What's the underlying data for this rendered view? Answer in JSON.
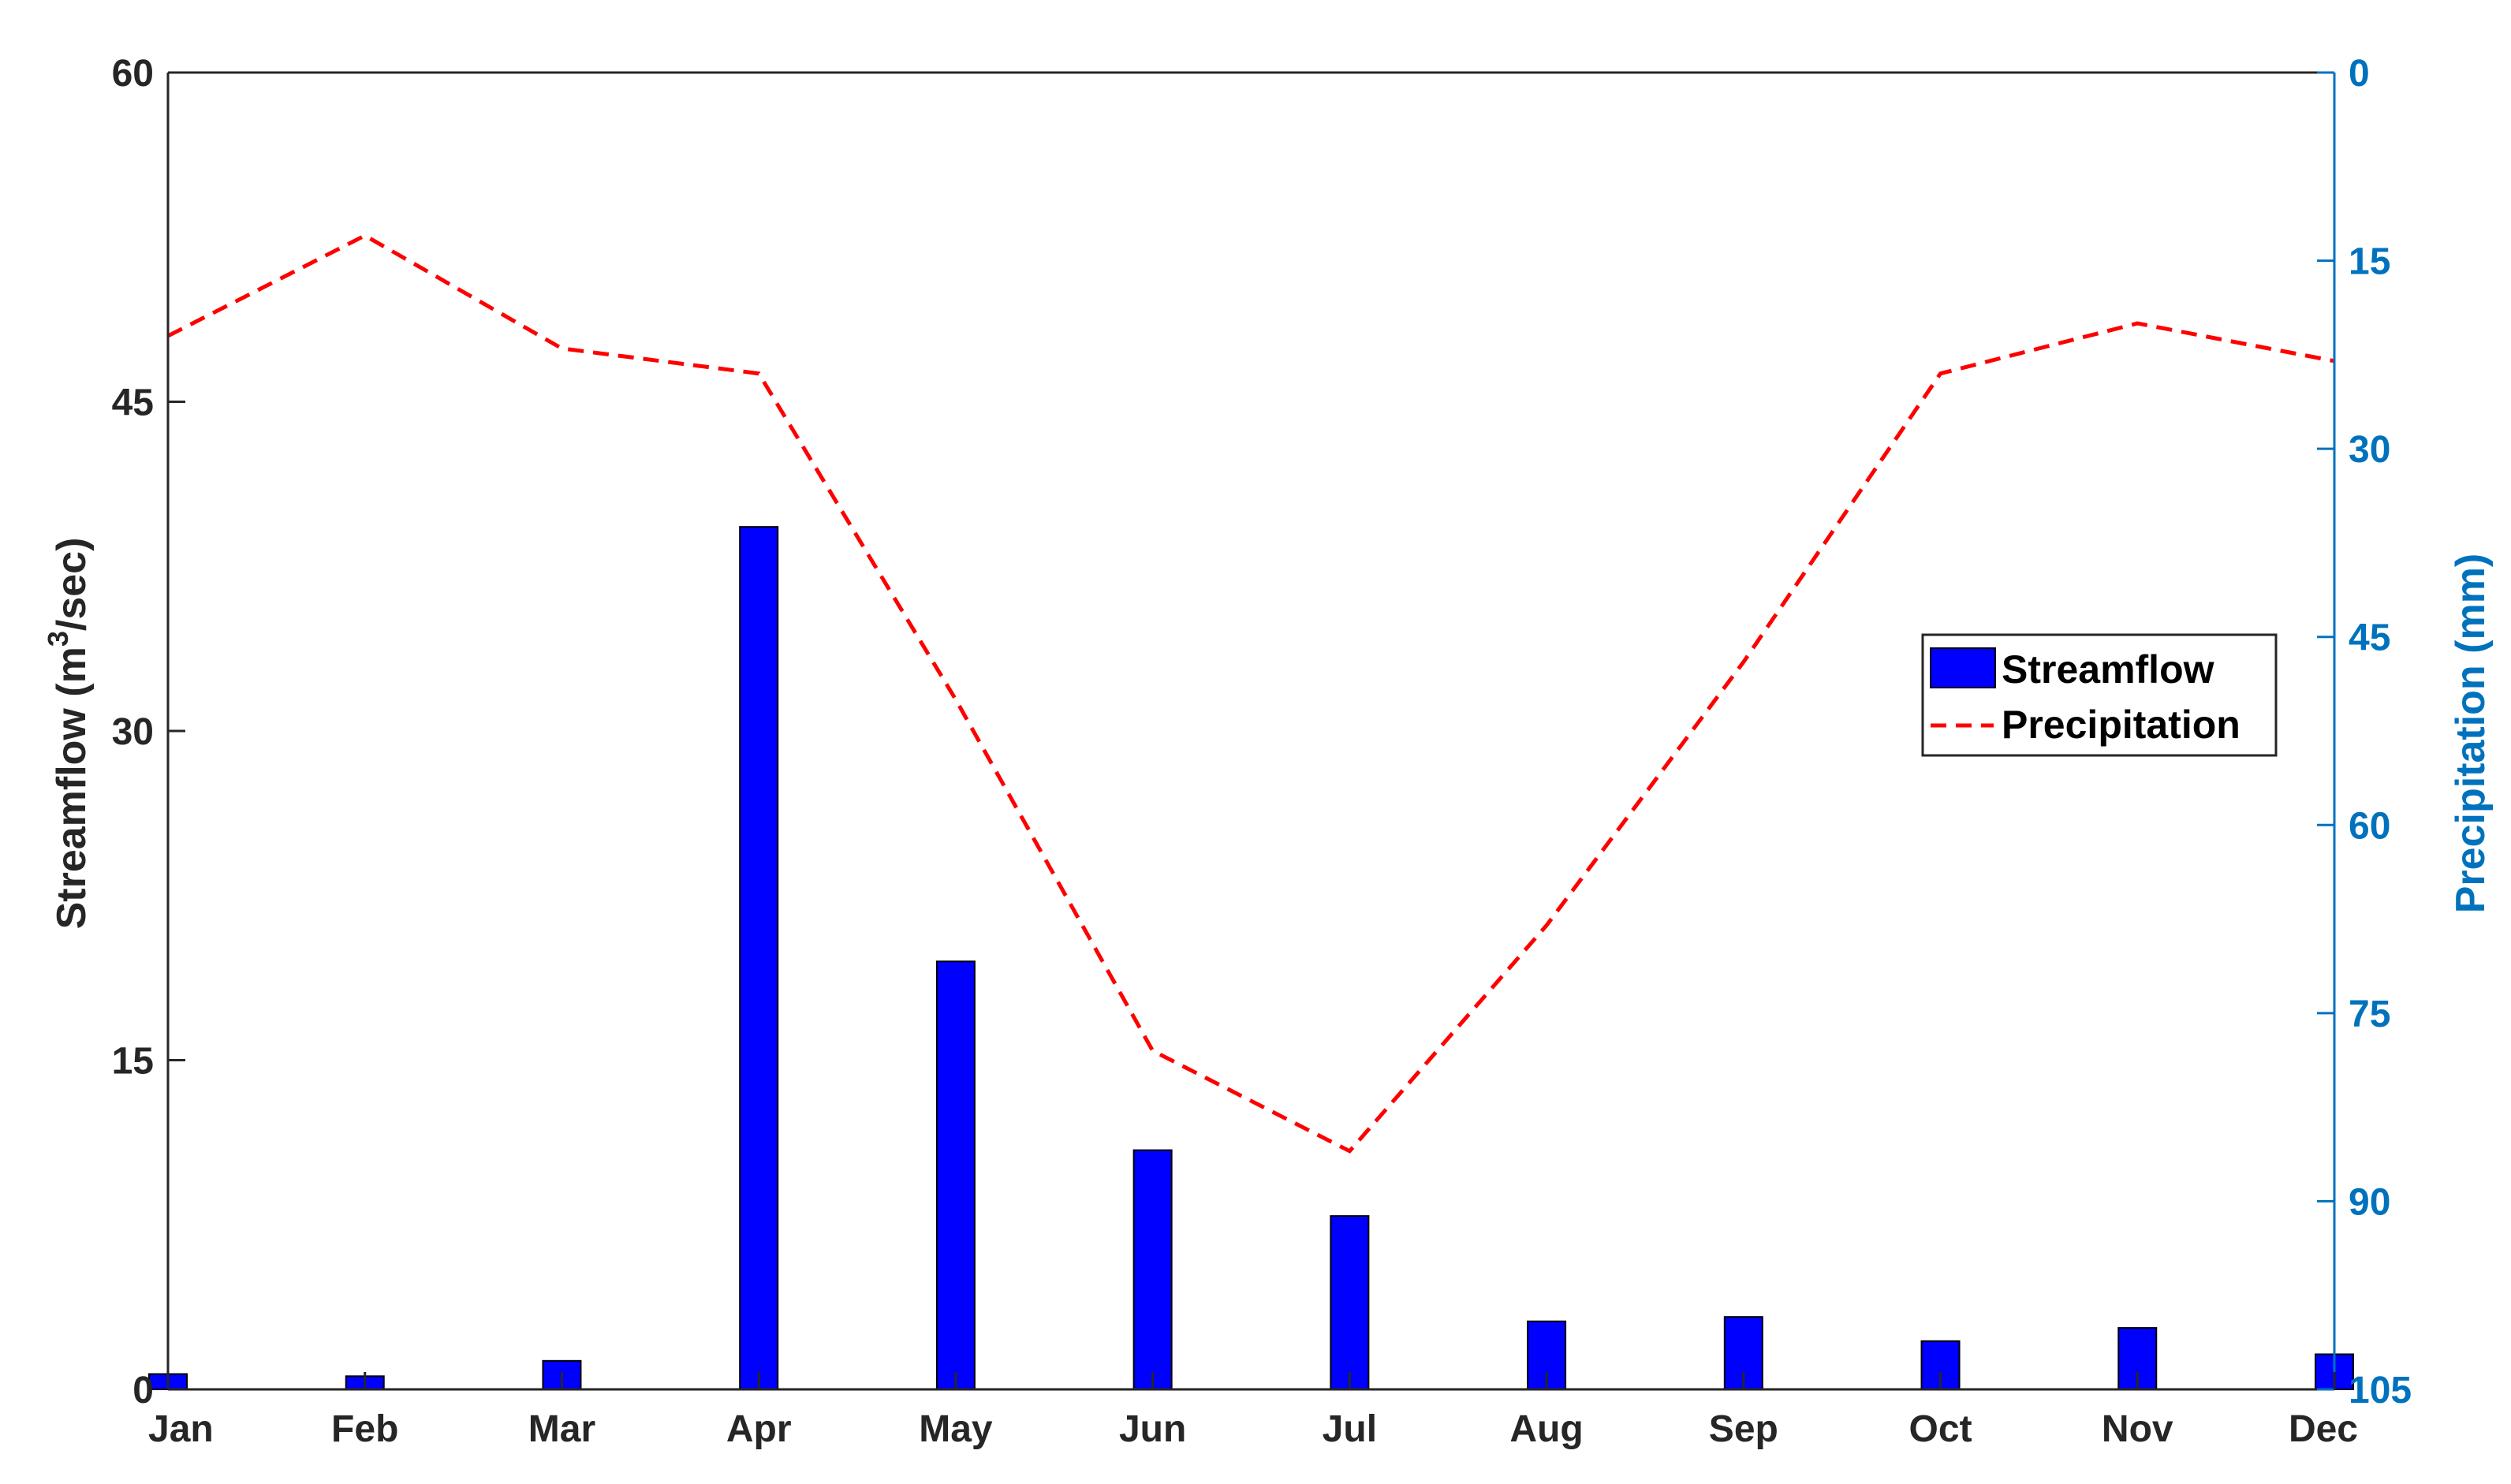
{
  "chart_data": {
    "type": "bar",
    "categories": [
      "Jan",
      "Feb",
      "Mar",
      "Apr",
      "May",
      "Jun",
      "Jul",
      "Aug",
      "Sep",
      "Oct",
      "Nov",
      "Dec"
    ],
    "series": [
      {
        "name": "Streamflow",
        "type": "bar",
        "axis": "left",
        "color": "#0000ff",
        "values": [
          0.7,
          0.6,
          1.3,
          39.3,
          19.5,
          10.9,
          7.9,
          3.1,
          3.3,
          2.2,
          2.8,
          1.6
        ]
      },
      {
        "name": "Precipitation",
        "type": "line",
        "axis": "right",
        "style": "dashed",
        "color": "#ff0000",
        "values": [
          21,
          13,
          22,
          24,
          50,
          78,
          86,
          68,
          47,
          24,
          20,
          23
        ]
      }
    ],
    "y_left": {
      "label_main": "Streamflow (m",
      "label_sup": "3",
      "label_tail": "/sec)",
      "ylim": [
        0,
        60
      ],
      "ticks": [
        "0",
        "15",
        "30",
        "45",
        "60"
      ],
      "color": "#262626"
    },
    "y_right": {
      "label": "Precipitation (mm)",
      "ylim": [
        0,
        105
      ],
      "reversed": true,
      "ticks": [
        "0",
        "15",
        "30",
        "45",
        "60",
        "75",
        "90",
        "105"
      ],
      "color": "#0072bd"
    },
    "legend": {
      "placement": "center-right",
      "entries": [
        "Streamflow",
        "Precipitation"
      ]
    },
    "grid": false
  }
}
